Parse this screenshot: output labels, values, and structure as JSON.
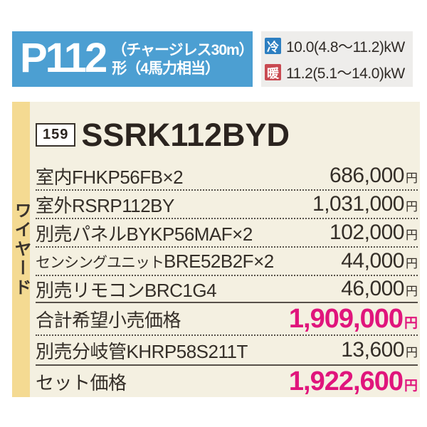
{
  "header": {
    "model_class": "P112",
    "subtitle_line1": "（チャージレス30m）",
    "subtitle_line2": "形（4馬力相当）",
    "cooling_badge": "冷",
    "cooling_value": "10.0(4.8～11.2)kW",
    "heating_badge": "暖",
    "heating_value": "11.2(5.1～14.0)kW"
  },
  "panel": {
    "side_tab": "ワイヤード",
    "ref_number": "159",
    "model_name": "SSRK112BYD",
    "rows": [
      {
        "label": "室内FHKP56FB×2",
        "price": "686,000",
        "unit": "円"
      },
      {
        "label": "室外RSRP112BY",
        "price": "1,031,000",
        "unit": "円"
      },
      {
        "label": "別売パネルBYKP56MAF×2",
        "price": "102,000",
        "unit": "円"
      },
      {
        "label_a": "センシングユニット",
        "label_b": "BRE52B2F×2",
        "price": "44,000",
        "unit": "円"
      },
      {
        "label": "別売リモコンBRC1G4",
        "price": "46,000",
        "unit": "円"
      },
      {
        "label": "合計希望小売価格",
        "price": "1,909,000",
        "unit": "円"
      },
      {
        "label": "別売分岐管KHRP58S211T",
        "price": "13,600",
        "unit": "円"
      },
      {
        "label": "セット価格",
        "price": "1,922,600",
        "unit": "円"
      }
    ]
  },
  "colors": {
    "banner_blue": "#4c9fd2",
    "cool_badge_blue": "#2d7fc1",
    "warm_badge_red": "#c94a52",
    "price_pink": "#e0157c",
    "tab_yellow": "#f4da92",
    "panel_cream": "#f4f0e1"
  }
}
